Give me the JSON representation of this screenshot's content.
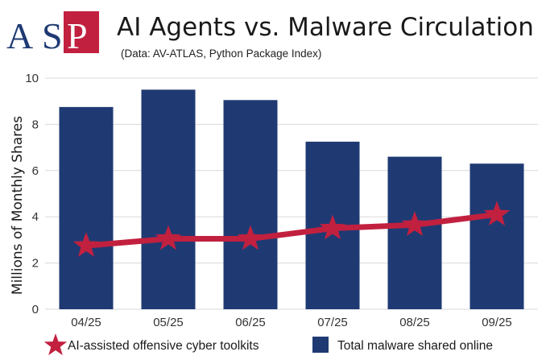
{
  "logo": {
    "letters": [
      "A",
      "S",
      "P"
    ],
    "colors": {
      "letter_blue": "#1f3a73",
      "letter_white": "#ffffff",
      "box_red": "#c2203f"
    }
  },
  "header": {
    "title": "AI Agents vs. Malware Circulation",
    "subtitle": "(Data: AV-ATLAS, Python Package Index)"
  },
  "chart_data": {
    "type": "bar+line",
    "title": "AI Agents vs. Malware Circulation",
    "subtitle": "(Data: AV-ATLAS, Python Package Index)",
    "ylabel": "Millions of Monthly Shares",
    "xlabel": "",
    "ylim": [
      0,
      10
    ],
    "yticks": [
      0,
      2,
      4,
      6,
      8,
      10
    ],
    "grid": true,
    "legend_position": "bottom",
    "categories": [
      "04/25",
      "05/25",
      "06/25",
      "07/25",
      "08/25",
      "09/25"
    ],
    "series": [
      {
        "name": "Total malware shared online",
        "type": "bar",
        "color": "#1f3a73",
        "values": [
          8.75,
          9.5,
          9.05,
          7.25,
          6.6,
          6.3
        ]
      },
      {
        "name": "AI-assisted offensive cyber toolkits",
        "type": "line",
        "marker": "star",
        "color": "#c2203f",
        "values": [
          2.75,
          3.05,
          3.05,
          3.5,
          3.65,
          4.1
        ]
      }
    ]
  }
}
